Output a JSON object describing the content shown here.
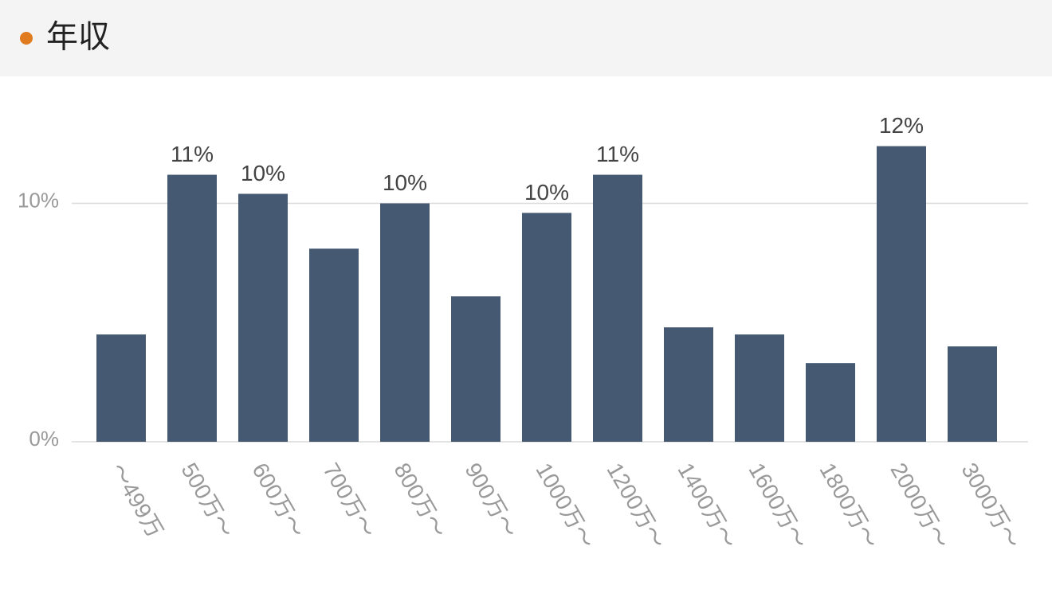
{
  "chart_data": {
    "type": "bar",
    "title": "年収",
    "categories": [
      "〜499万",
      "500万〜",
      "600万〜",
      "700万〜",
      "800万〜",
      "900万〜",
      "1000万〜",
      "1200万〜",
      "1400万〜",
      "1600万〜",
      "1800万〜",
      "2000万〜",
      "3000万〜"
    ],
    "values": [
      4.5,
      11.2,
      10.4,
      8.1,
      10.0,
      6.1,
      9.6,
      11.2,
      4.8,
      4.5,
      3.3,
      12.4,
      4.0
    ],
    "value_labels": [
      null,
      "11%",
      "10%",
      null,
      "10%",
      null,
      "10%",
      "11%",
      null,
      null,
      null,
      "12%",
      null
    ],
    "color": "#455a72",
    "ylim": [
      0,
      14.5
    ],
    "yticks": [
      {
        "value": 0,
        "label": "0%"
      },
      {
        "value": 10,
        "label": "10%"
      }
    ],
    "grid": true
  }
}
